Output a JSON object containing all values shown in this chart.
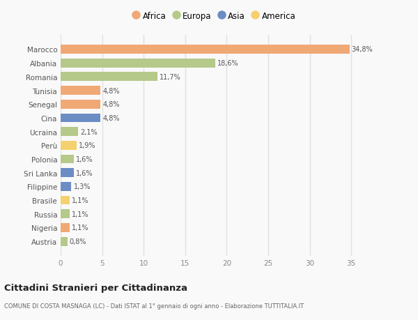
{
  "countries": [
    "Austria",
    "Nigeria",
    "Russia",
    "Brasile",
    "Filippine",
    "Sri Lanka",
    "Polonia",
    "Perù",
    "Ucraina",
    "Cina",
    "Senegal",
    "Tunisia",
    "Romania",
    "Albania",
    "Marocco"
  ],
  "values": [
    0.8,
    1.1,
    1.1,
    1.1,
    1.3,
    1.6,
    1.6,
    1.9,
    2.1,
    4.8,
    4.8,
    4.8,
    11.7,
    18.6,
    34.8
  ],
  "labels": [
    "0,8%",
    "1,1%",
    "1,1%",
    "1,1%",
    "1,3%",
    "1,6%",
    "1,6%",
    "1,9%",
    "2,1%",
    "4,8%",
    "4,8%",
    "4,8%",
    "11,7%",
    "18,6%",
    "34,8%"
  ],
  "continents": [
    "Europa",
    "Africa",
    "Europa",
    "America",
    "Asia",
    "Asia",
    "Europa",
    "America",
    "Europa",
    "Asia",
    "Africa",
    "Africa",
    "Europa",
    "Europa",
    "Africa"
  ],
  "continent_colors": {
    "Africa": "#F0A875",
    "Europa": "#B5C98A",
    "Asia": "#6B8DC4",
    "America": "#F5D06E"
  },
  "legend_order": [
    "Africa",
    "Europa",
    "Asia",
    "America"
  ],
  "title": "Cittadini Stranieri per Cittadinanza",
  "subtitle": "COMUNE DI COSTA MASNAGA (LC) - Dati ISTAT al 1° gennaio di ogni anno - Elaborazione TUTTITALIA.IT",
  "xlim": [
    0,
    37
  ],
  "xticks": [
    0,
    5,
    10,
    15,
    20,
    25,
    30,
    35
  ],
  "background_color": "#f9f9f9",
  "grid_color": "#e0e0e0",
  "bar_height": 0.65
}
